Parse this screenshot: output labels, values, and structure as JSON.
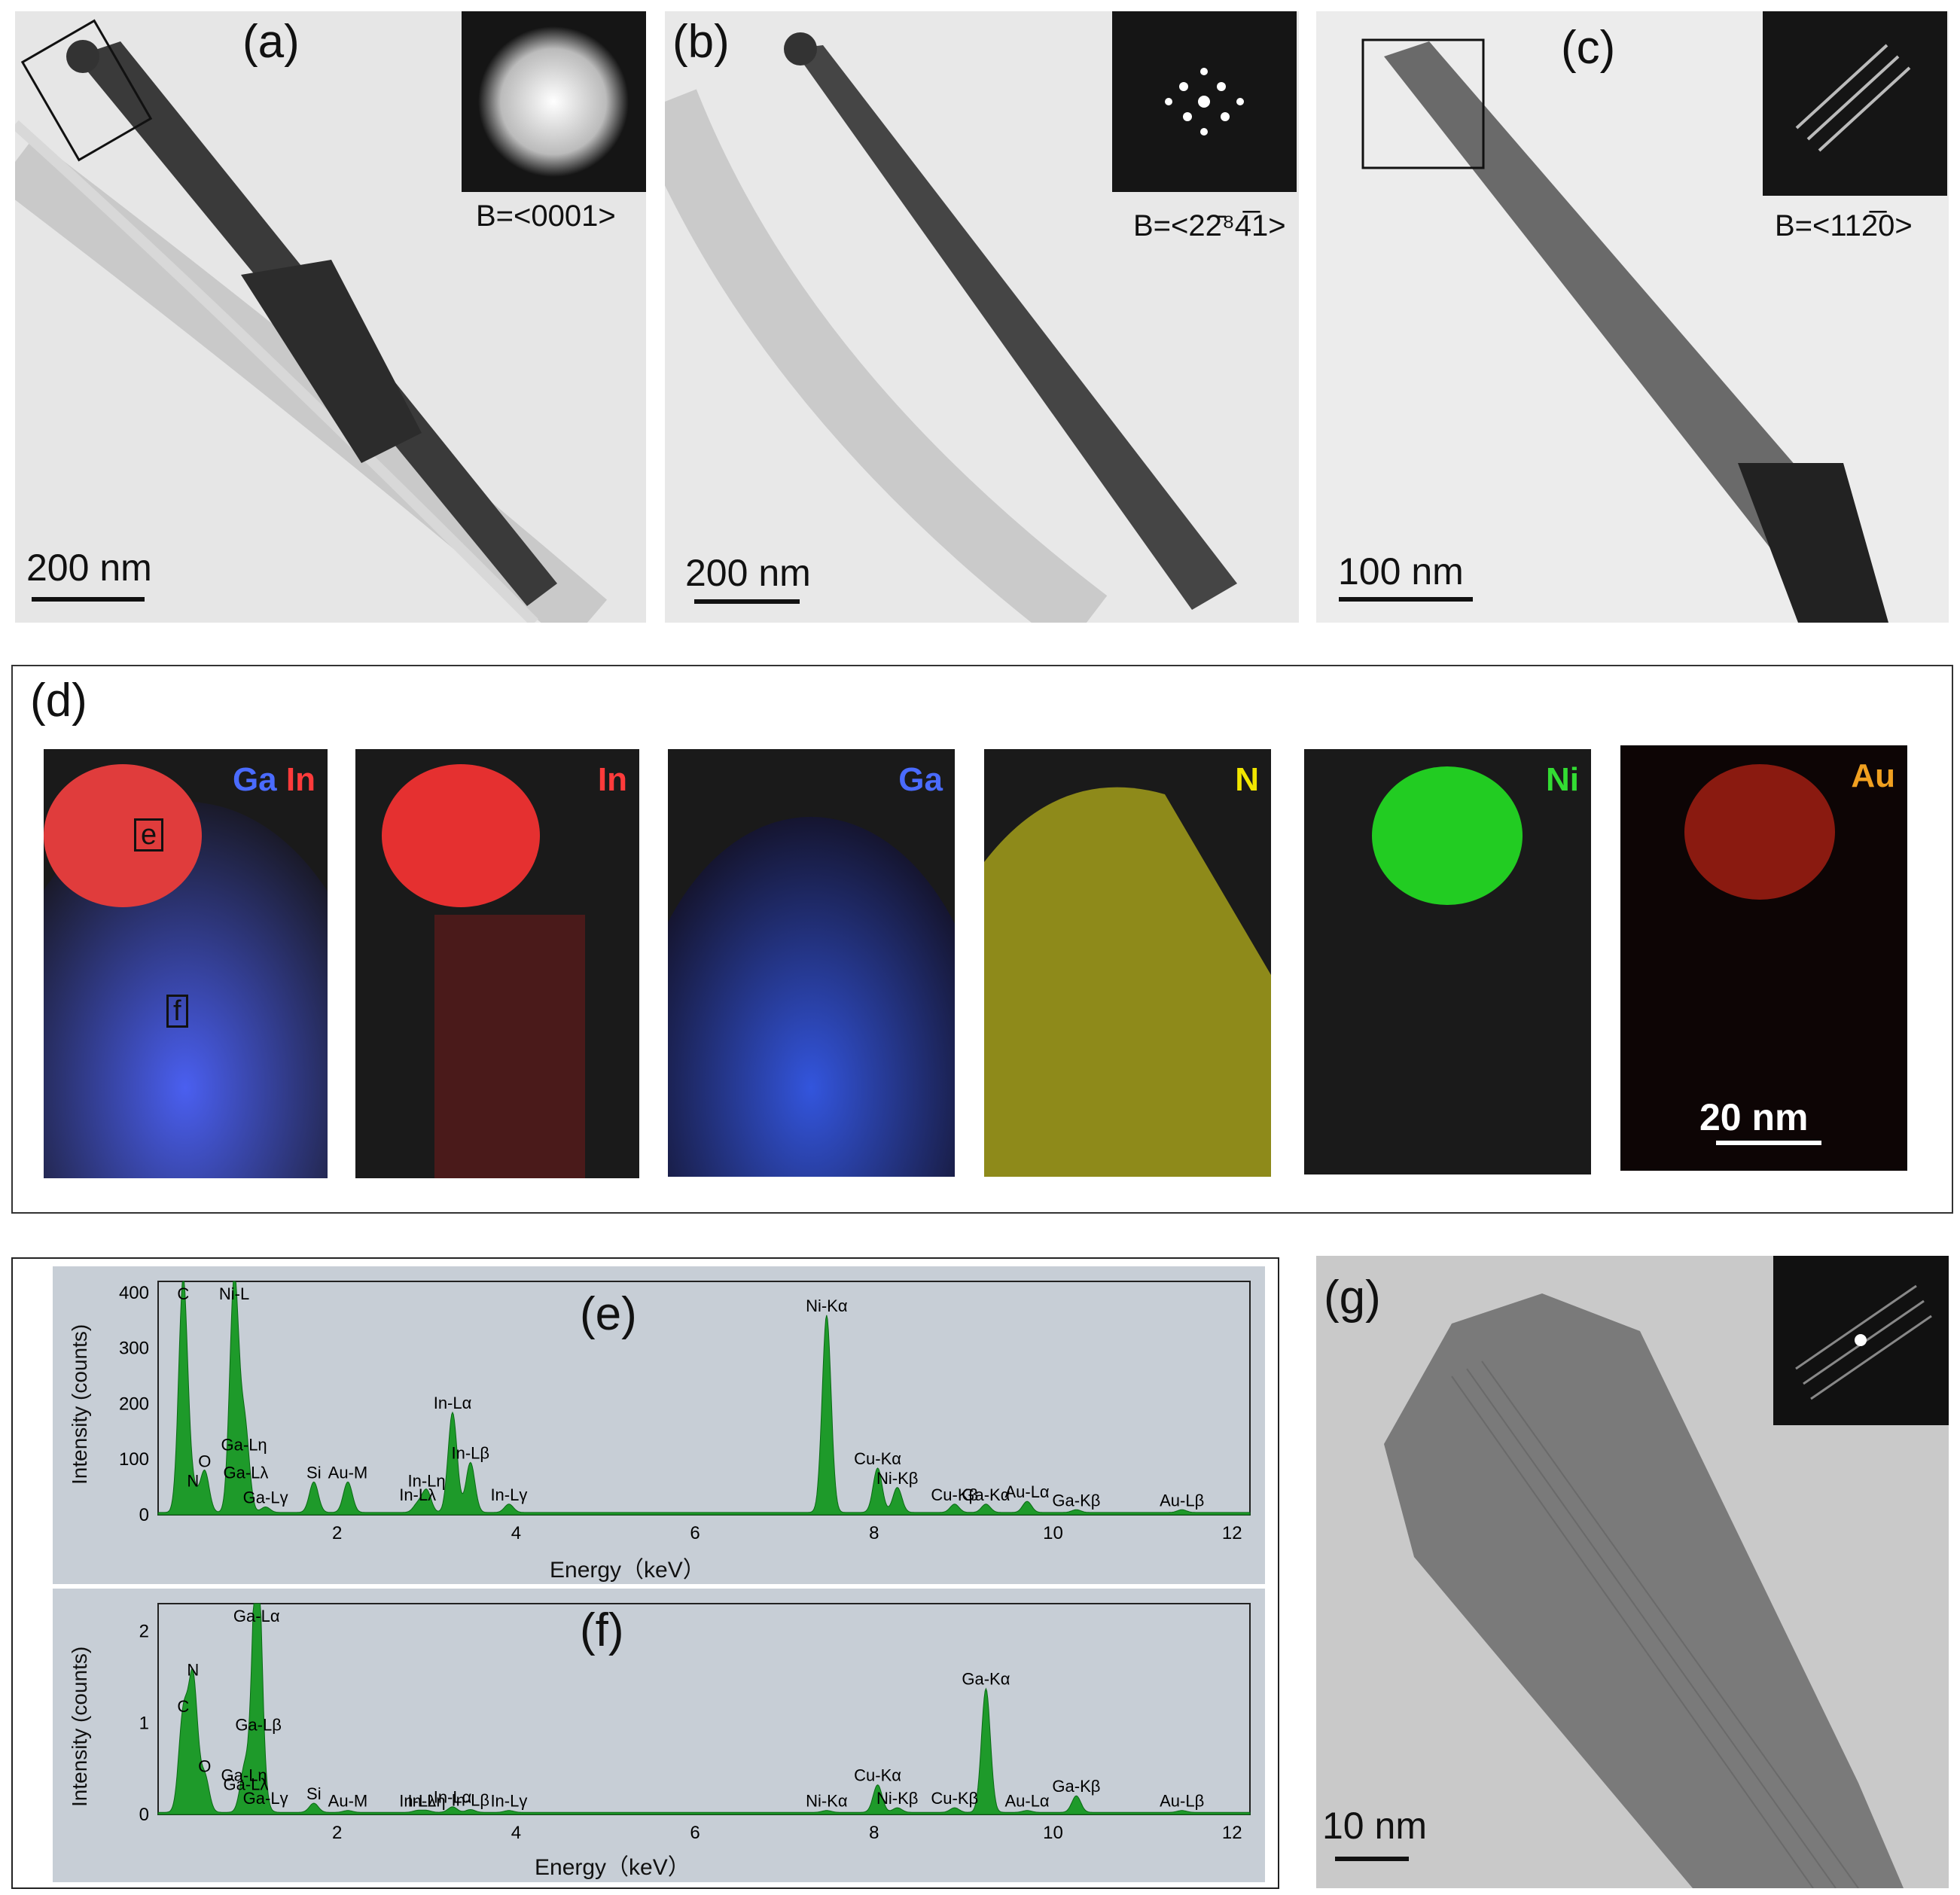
{
  "panels": {
    "a": {
      "label": "(a)",
      "scale": "200 nm",
      "zone_axis": "B=<0001>"
    },
    "b": {
      "label": "(b)",
      "scale": "200 nm",
      "zone_axis": "B=<22̅ 4̅1>"
    },
    "c": {
      "label": "(c)",
      "scale": "100 nm",
      "zone_axis": "B=<112̅0>"
    },
    "d": {
      "label": "(d)",
      "scale": "20 nm",
      "maps": [
        {
          "title": "Ga In",
          "box_e": "e",
          "box_f": "f"
        },
        {
          "title": "In"
        },
        {
          "title": "Ga"
        },
        {
          "title": "N"
        },
        {
          "title": "Ni"
        },
        {
          "title": "Au"
        }
      ]
    },
    "g": {
      "label": "(g)",
      "scale": "10 nm"
    }
  },
  "zone_b": "B=<22̄⁸4̅1>",
  "chart_data": [
    {
      "type": "line",
      "panel": "(e)",
      "xlabel": "Energy（keV）",
      "ylabel": "Intensity (counts)",
      "xlim": [
        0,
        12.2
      ],
      "ylim": [
        0,
        420
      ],
      "xticks": [
        "2",
        "4",
        "6",
        "8",
        "10",
        "12"
      ],
      "yticks": [
        "0",
        "100",
        "200",
        "300",
        "400"
      ],
      "peaks": [
        {
          "label": "C",
          "x": 0.28,
          "y": 420
        },
        {
          "label": "N",
          "x": 0.39,
          "y": 40
        },
        {
          "label": "O",
          "x": 0.52,
          "y": 75
        },
        {
          "label": "Ni-L",
          "x": 0.85,
          "y": 420
        },
        {
          "label": "Ga-Lη",
          "x": 0.96,
          "y": 105
        },
        {
          "label": "Ga-Lλ",
          "x": 0.98,
          "y": 55
        },
        {
          "label": "Ga-Lγ",
          "x": 1.2,
          "y": 10
        },
        {
          "label": "Si",
          "x": 1.74,
          "y": 55
        },
        {
          "label": "Au-M",
          "x": 2.12,
          "y": 55
        },
        {
          "label": "In-Lλ",
          "x": 2.9,
          "y": 15
        },
        {
          "label": "In-Lη",
          "x": 3.0,
          "y": 40
        },
        {
          "label": "In-Lα",
          "x": 3.29,
          "y": 180
        },
        {
          "label": "In-Lβ",
          "x": 3.49,
          "y": 90
        },
        {
          "label": "In-Lγ",
          "x": 3.92,
          "y": 15
        },
        {
          "label": "Ni-Kα",
          "x": 7.47,
          "y": 355
        },
        {
          "label": "Cu-Kα",
          "x": 8.04,
          "y": 80
        },
        {
          "label": "Ni-Kβ",
          "x": 8.26,
          "y": 45
        },
        {
          "label": "Cu-Kβ",
          "x": 8.9,
          "y": 15
        },
        {
          "label": "Ga-Kα",
          "x": 9.25,
          "y": 15
        },
        {
          "label": "Au-Lα",
          "x": 9.71,
          "y": 20
        },
        {
          "label": "Ga-Kβ",
          "x": 10.26,
          "y": 5
        },
        {
          "label": "Au-Lβ",
          "x": 11.44,
          "y": 5
        }
      ]
    },
    {
      "type": "line",
      "panel": "(f)",
      "xlabel": "Energy（keV）",
      "ylabel": "Intensity (counts)",
      "xlim": [
        0,
        12.2
      ],
      "ylim": [
        0,
        2.3
      ],
      "xticks": [
        "2",
        "4",
        "6",
        "8",
        "10",
        "12"
      ],
      "yticks": [
        "0",
        "1",
        "2"
      ],
      "peaks": [
        {
          "label": "C",
          "x": 0.28,
          "y": 1.05
        },
        {
          "label": "N",
          "x": 0.39,
          "y": 1.45
        },
        {
          "label": "O",
          "x": 0.52,
          "y": 0.4
        },
        {
          "label": "Ga-Lη",
          "x": 0.96,
          "y": 0.3
        },
        {
          "label": "Ga-Lλ",
          "x": 0.98,
          "y": 0.2
        },
        {
          "label": "Ga-Lα",
          "x": 1.1,
          "y": 2.3
        },
        {
          "label": "Ga-Lβ",
          "x": 1.12,
          "y": 0.85
        },
        {
          "label": "Ga-Lγ",
          "x": 1.2,
          "y": 0.05
        },
        {
          "label": "Si",
          "x": 1.74,
          "y": 0.1
        },
        {
          "label": "Au-M",
          "x": 2.12,
          "y": 0.02
        },
        {
          "label": "In-Lη",
          "x": 3.0,
          "y": 0.02
        },
        {
          "label": "In-Lλ",
          "x": 2.9,
          "y": 0.02
        },
        {
          "label": "In-Lβ",
          "x": 3.49,
          "y": 0.03
        },
        {
          "label": "In-Lα",
          "x": 3.29,
          "y": 0.06
        },
        {
          "label": "In-Lγ",
          "x": 3.92,
          "y": 0.02
        },
        {
          "label": "Ni-Kα",
          "x": 7.47,
          "y": 0.02
        },
        {
          "label": "Cu-Kα",
          "x": 8.04,
          "y": 0.3
        },
        {
          "label": "Ni-Kβ",
          "x": 8.26,
          "y": 0.05
        },
        {
          "label": "Cu-Kβ",
          "x": 8.9,
          "y": 0.05
        },
        {
          "label": "Ga-Kα",
          "x": 9.25,
          "y": 1.35
        },
        {
          "label": "Au-Lα",
          "x": 9.71,
          "y": 0.02
        },
        {
          "label": "Ga-Kβ",
          "x": 10.26,
          "y": 0.18
        },
        {
          "label": "Au-Lβ",
          "x": 11.44,
          "y": 0.02
        }
      ]
    }
  ]
}
